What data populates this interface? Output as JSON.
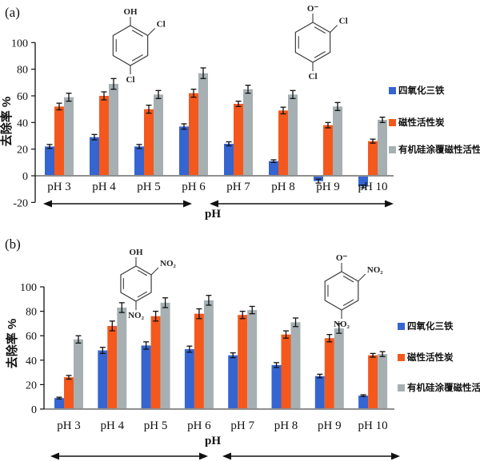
{
  "figure": {
    "panel_a_label": "(a)",
    "panel_b_label": "(b)",
    "y_axis_label": "去除率 %",
    "x_axis_label": "pH"
  },
  "legend": {
    "items": [
      {
        "label": "四氧化三铁",
        "color": "#3565D0"
      },
      {
        "label": "磁性活性炭",
        "color": "#F4581C"
      },
      {
        "label": "有机硅涂覆磁性活性炭",
        "color": "#A6B0B3"
      }
    ]
  },
  "chart_data": [
    {
      "type": "bar",
      "panel": "(a)",
      "xlabel": "pH",
      "ylabel": "去除率 %",
      "ylim": [
        -20,
        100
      ],
      "yticks": [
        -20,
        0,
        20,
        40,
        60,
        80,
        100
      ],
      "grid": false,
      "legend_position": "right",
      "categories": [
        "pH 3",
        "pH 4",
        "pH 5",
        "pH 6",
        "pH 7",
        "pH 8",
        "pH 9",
        "pH 10"
      ],
      "series": [
        {
          "name": "四氧化三铁",
          "color": "#3565D0",
          "values": [
            22,
            29,
            22,
            37,
            24,
            11,
            -4,
            -8
          ],
          "errors": [
            1.5,
            2,
            1.5,
            2,
            1.5,
            1,
            1.5,
            1
          ]
        },
        {
          "name": "磁性活性炭",
          "color": "#F4581C",
          "values": [
            52,
            60,
            50,
            62,
            54,
            49,
            38,
            26
          ],
          "errors": [
            2.5,
            3,
            3,
            3,
            2,
            2.5,
            2,
            1.5
          ]
        },
        {
          "name": "有机硅涂覆磁性活性炭",
          "color": "#A6B0B3",
          "values": [
            59,
            69,
            61,
            77,
            65,
            61,
            52,
            42
          ],
          "errors": [
            3,
            4,
            3,
            4,
            3,
            3,
            3,
            2
          ]
        }
      ],
      "molecules": [
        {
          "name": "2,4-dichlorophenol",
          "top": "OH",
          "ortho": "Cl",
          "para": "Cl"
        },
        {
          "name": "2,4-dichlorophenolate",
          "top": "O⁻",
          "ortho": "Cl",
          "para": "Cl"
        }
      ]
    },
    {
      "type": "bar",
      "panel": "(b)",
      "xlabel": "pH",
      "ylabel": "去除率 %",
      "ylim": [
        0,
        100
      ],
      "yticks": [
        0,
        20,
        40,
        60,
        80,
        100
      ],
      "grid": false,
      "legend_position": "right",
      "categories": [
        "pH 3",
        "pH 4",
        "pH 5",
        "pH 6",
        "pH 7",
        "pH 8",
        "pH 9",
        "pH 10"
      ],
      "series": [
        {
          "name": "四氧化三铁",
          "color": "#3565D0",
          "values": [
            9,
            48,
            52,
            49,
            44,
            36,
            27,
            11
          ],
          "errors": [
            0.7,
            2.5,
            3,
            2.5,
            2,
            2,
            1.5,
            0.7
          ]
        },
        {
          "name": "磁性活性炭",
          "color": "#F4581C",
          "values": [
            26,
            68,
            76,
            78,
            77,
            61,
            58,
            44
          ],
          "errors": [
            1.5,
            4,
            4,
            4,
            3,
            3,
            3,
            1.5
          ]
        },
        {
          "name": "有机硅涂覆磁性活性炭",
          "color": "#A6B0B3",
          "values": [
            57,
            83,
            87,
            89,
            81,
            71,
            66,
            45
          ],
          "errors": [
            3,
            4,
            4,
            4,
            3,
            3.5,
            4,
            2
          ]
        }
      ],
      "molecules": [
        {
          "name": "2,4-dinitrophenol",
          "top": "OH",
          "ortho": "NO₂",
          "para": "NO₂"
        },
        {
          "name": "2,4-dinitrophenolate",
          "top": "O⁻",
          "ortho": "NO₂",
          "para": "NO₂"
        }
      ]
    }
  ]
}
